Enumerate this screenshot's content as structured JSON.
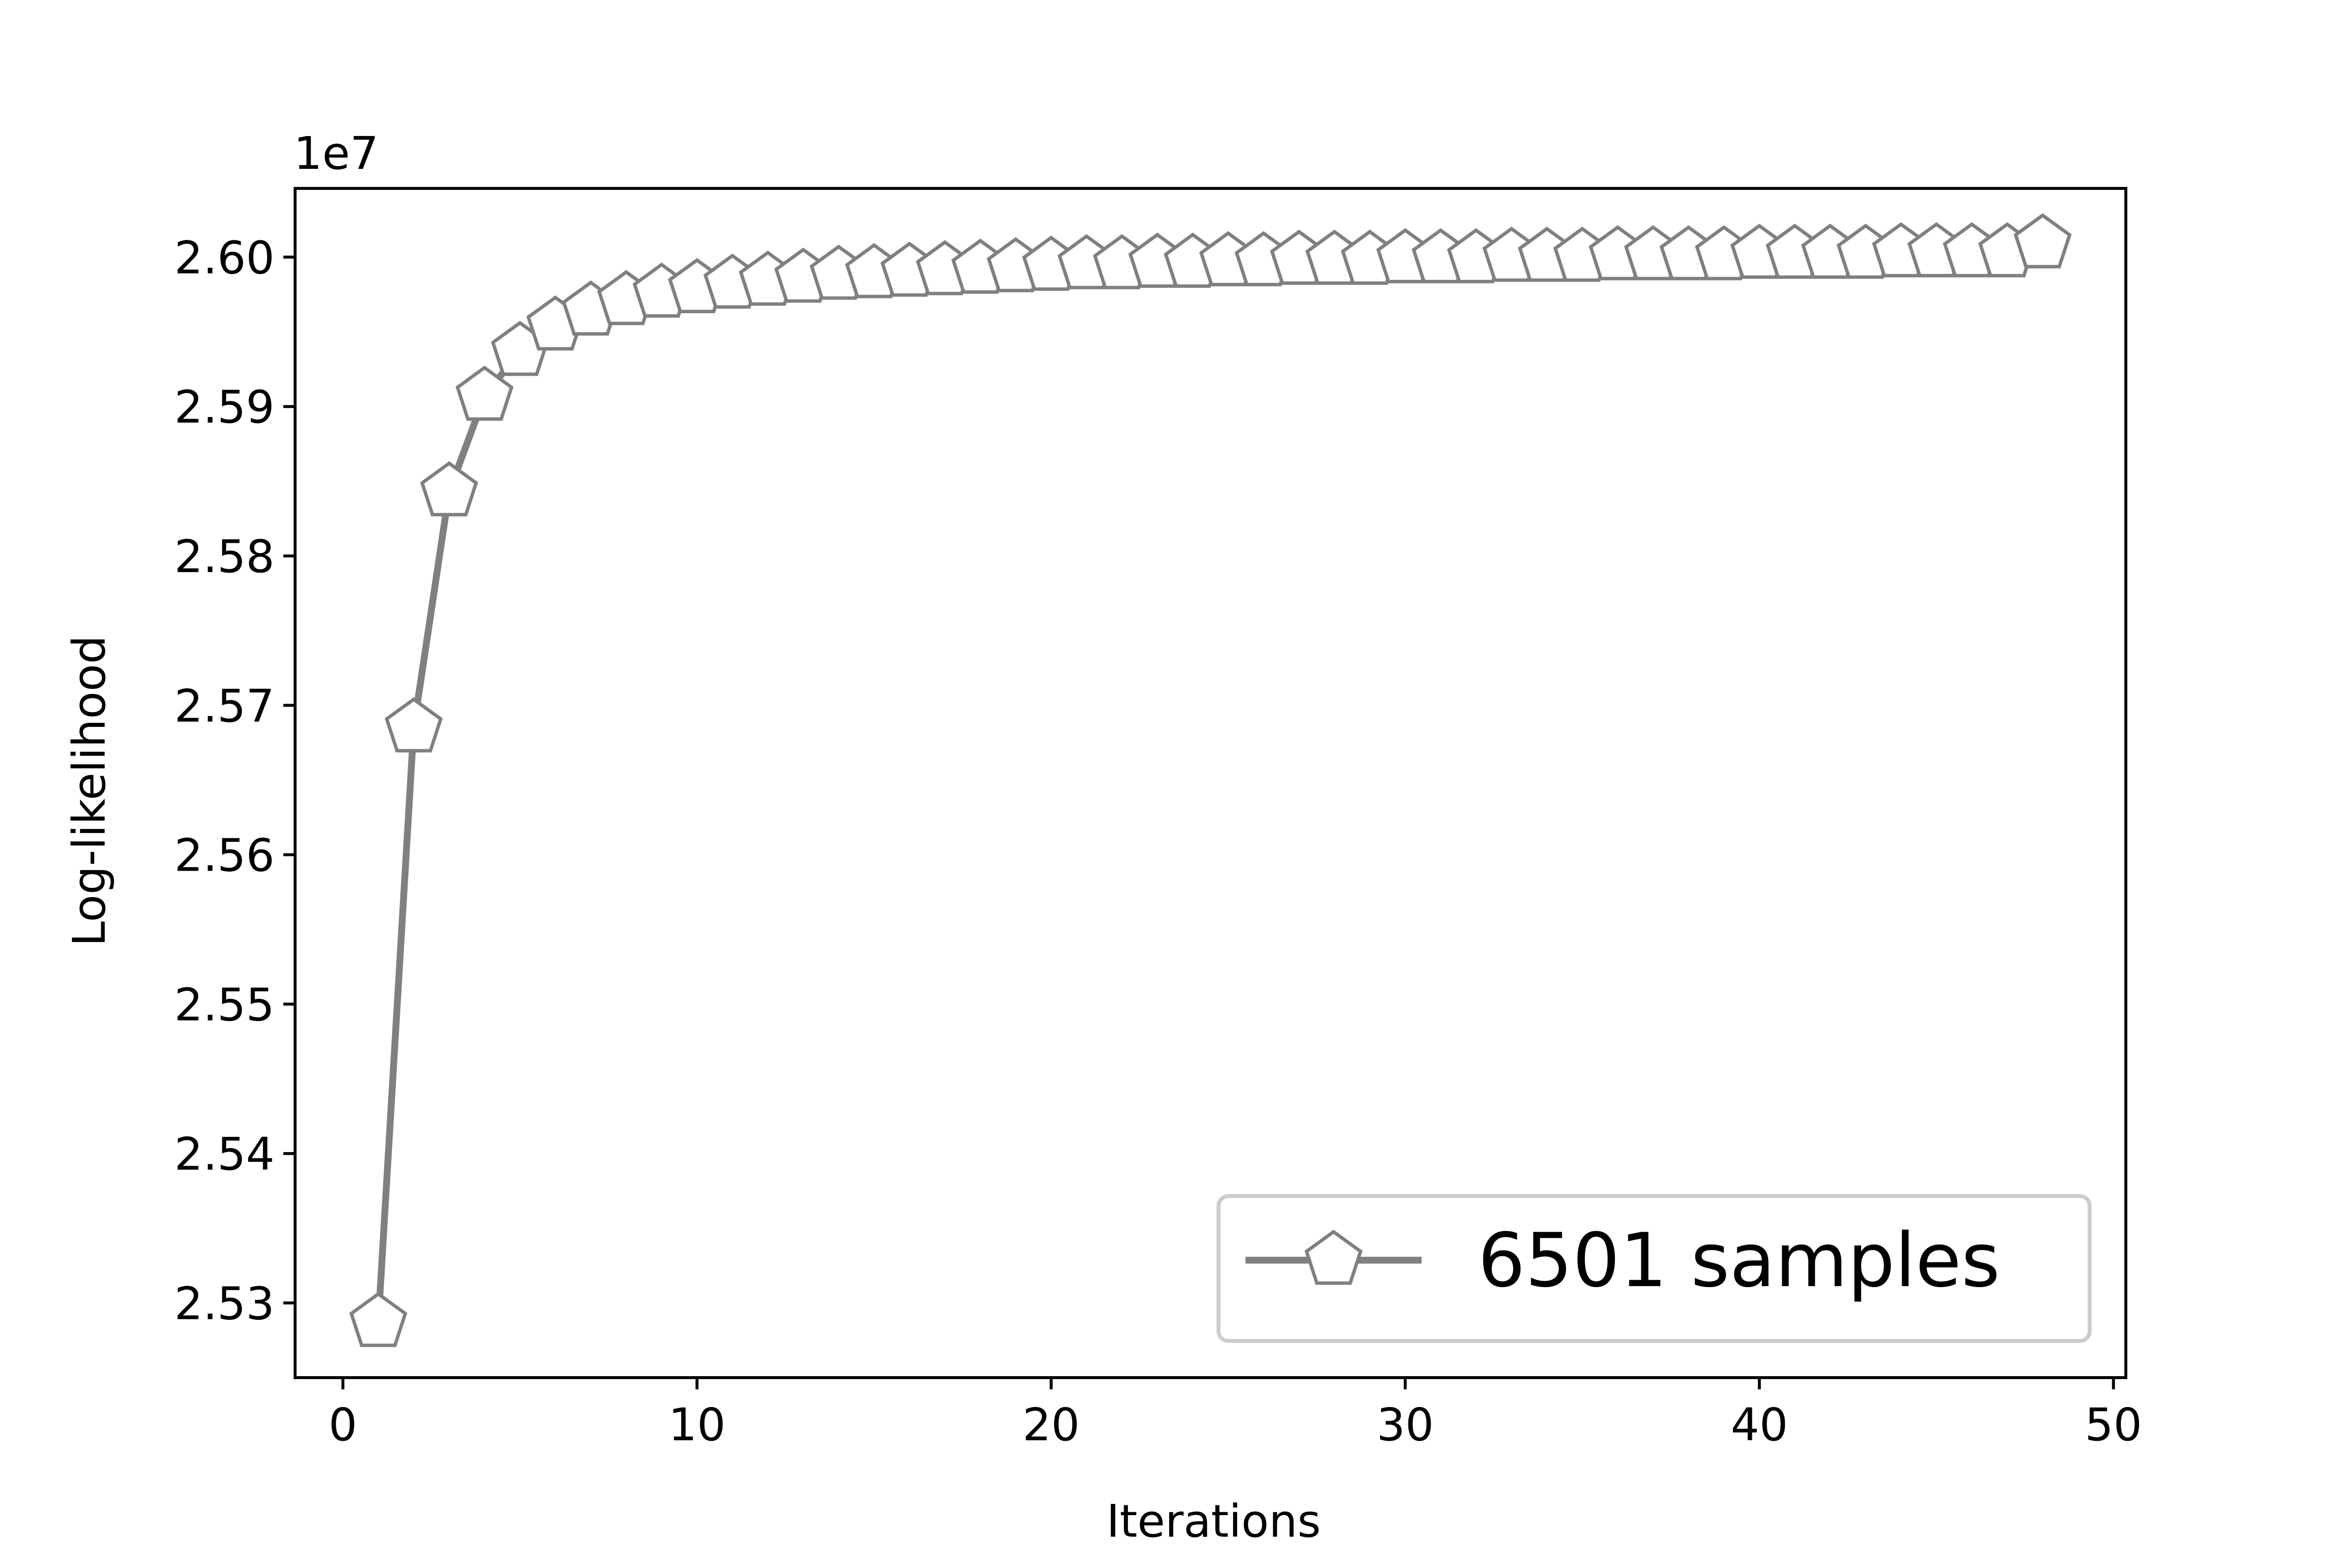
{
  "chart_data": {
    "type": "line",
    "xlabel": "Iterations",
    "ylabel": "Log-likelihood",
    "offset_text": "1e7",
    "xlim": [
      -1.35,
      50.35
    ],
    "ylim": [
      2.525,
      2.6046
    ],
    "xticks": [
      0,
      10,
      20,
      30,
      40,
      50
    ],
    "xtick_labels": [
      "0",
      "10",
      "20",
      "30",
      "40",
      "50"
    ],
    "yticks": [
      2.53,
      2.54,
      2.55,
      2.56,
      2.57,
      2.58,
      2.59,
      2.6
    ],
    "ytick_labels": [
      "2.53",
      "2.54",
      "2.55",
      "2.56",
      "2.57",
      "2.58",
      "2.59",
      "2.60"
    ],
    "grid": false,
    "legend_position": "lower-right",
    "series": [
      {
        "name": "6501 samples",
        "color": "#808080",
        "marker": "pentagon",
        "x": [
          1,
          2,
          3,
          4,
          5,
          6,
          7,
          8,
          9,
          10,
          11,
          12,
          13,
          14,
          15,
          16,
          17,
          18,
          19,
          20,
          21,
          22,
          23,
          24,
          25,
          26,
          27,
          28,
          29,
          30,
          31,
          32,
          33,
          34,
          35,
          36,
          37,
          38,
          39,
          40,
          41,
          42,
          43,
          44,
          45,
          46,
          47,
          48
        ],
        "y": [
          2.5287,
          2.5685,
          2.5843,
          2.5907,
          2.5937,
          2.5954,
          2.5964,
          2.5971,
          2.5976,
          2.5979,
          2.5982,
          2.5984,
          2.5986,
          2.5988,
          2.5989,
          2.599,
          2.5991,
          2.5992,
          2.5993,
          2.5994,
          2.5995,
          2.5995,
          2.5996,
          2.5996,
          2.5997,
          2.5997,
          2.5998,
          2.5998,
          2.5998,
          2.5999,
          2.5999,
          2.5999,
          2.6,
          2.6,
          2.6,
          2.6001,
          2.6001,
          2.6001,
          2.6001,
          2.6002,
          2.6002,
          2.6002,
          2.6002,
          2.6003,
          2.6003,
          2.6003,
          2.6003,
          2.6009
        ]
      }
    ]
  }
}
